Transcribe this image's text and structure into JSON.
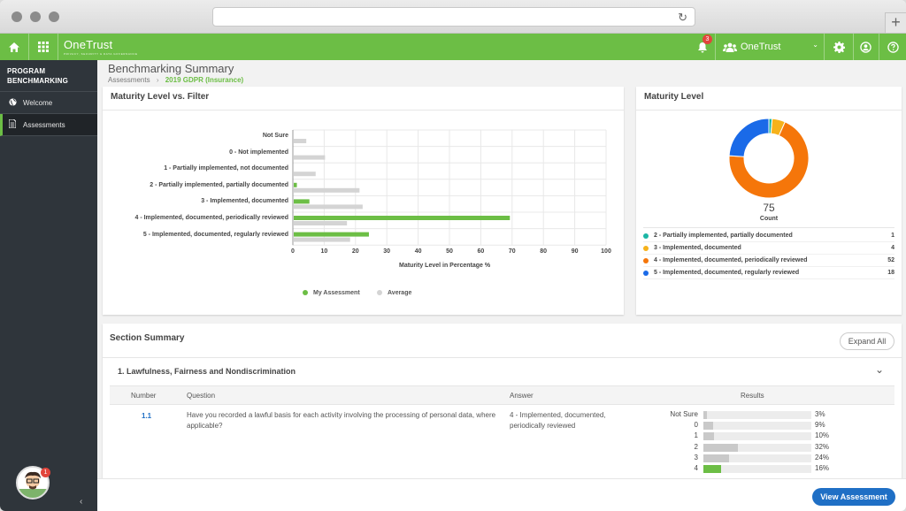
{
  "brand": {
    "name": "OneTrust",
    "tagline": "PRIVACY, SECURITY & DATA GOVERNANCE"
  },
  "topbar": {
    "notif_count": "3",
    "org": "OneTrust"
  },
  "sidebar": {
    "title_line1": "PROGRAM",
    "title_line2": "BENCHMARKING",
    "items": [
      {
        "label": "Welcome",
        "icon": "globe-icon"
      },
      {
        "label": "Assessments",
        "icon": "document-icon"
      }
    ],
    "avatar_badge": "1"
  },
  "header": {
    "title": "Benchmarking Summary",
    "crumb_root": "Assessments",
    "crumb_current": "2019 GDPR (Insurance)"
  },
  "maturity_filter_card": {
    "title": "Maturity Level vs. Filter"
  },
  "maturity_card": {
    "title": "Maturity Level",
    "total": "75",
    "total_label": "Count"
  },
  "colors": {
    "green": "#6cbe45",
    "gray": "#d4d4d4",
    "teal": "#1bb6a5",
    "yellow": "#f6b21b",
    "orange": "#f5760a",
    "blue": "#1a6ae8",
    "accent": "#1f6fc5"
  },
  "chart_data": [
    {
      "type": "bar",
      "orientation": "horizontal",
      "categories": [
        "Not Sure",
        "0 - Not implemented",
        "1 - Partially implemented, not documented",
        "2 - Partially implemented, partially documented",
        "3 - Implemented, documented",
        "4 - Implemented, documented, periodically reviewed",
        "5 - Implemented, documented, regularly reviewed"
      ],
      "series": [
        {
          "name": "My Assessment",
          "values": [
            0,
            0,
            0,
            1,
            5,
            69,
            24
          ]
        },
        {
          "name": "Average",
          "values": [
            4,
            10,
            7,
            21,
            22,
            17,
            18
          ]
        }
      ],
      "xlabel": "Maturity Level in Percentage %",
      "xlim": [
        0,
        100
      ],
      "xticks": [
        "0",
        "10",
        "20",
        "30",
        "40",
        "50",
        "60",
        "70",
        "80",
        "90",
        "100"
      ],
      "legend": "bottom"
    },
    {
      "type": "pie",
      "donut": true,
      "labels": [
        "2 - Partially implemented, partially documented",
        "3 - Implemented, documented",
        "4 - Implemented, documented, periodically reviewed",
        "5 - Implemented, documented, regularly reviewed"
      ],
      "values": [
        1,
        4,
        52,
        18
      ],
      "display_values": [
        "1",
        "4",
        "52",
        "18"
      ],
      "colors": [
        "#1bb6a5",
        "#f6b21b",
        "#f5760a",
        "#1a6ae8"
      ],
      "legend": "bottom"
    }
  ],
  "section_summary": {
    "title": "Section Summary",
    "expand_label": "Expand All",
    "section_title": "1. Lawfulness, Fairness and Nondiscrimination",
    "headers": {
      "number": "Number",
      "question": "Question",
      "answer": "Answer",
      "results": "Results"
    },
    "row": {
      "number": "1.1",
      "question": "Have you recorded a lawful basis for each activity involving the processing of personal data, where applicable?",
      "answer": "4 - Implemented, documented, periodically reviewed",
      "results": [
        {
          "label": "Not Sure",
          "pct": "3%",
          "value": 3,
          "mine": false
        },
        {
          "label": "0",
          "pct": "9%",
          "value": 9,
          "mine": false
        },
        {
          "label": "1",
          "pct": "10%",
          "value": 10,
          "mine": false
        },
        {
          "label": "2",
          "pct": "32%",
          "value": 32,
          "mine": false
        },
        {
          "label": "3",
          "pct": "24%",
          "value": 24,
          "mine": false
        },
        {
          "label": "4",
          "pct": "16%",
          "value": 16,
          "mine": true
        }
      ]
    }
  },
  "footer": {
    "view_button": "View Assessment"
  }
}
